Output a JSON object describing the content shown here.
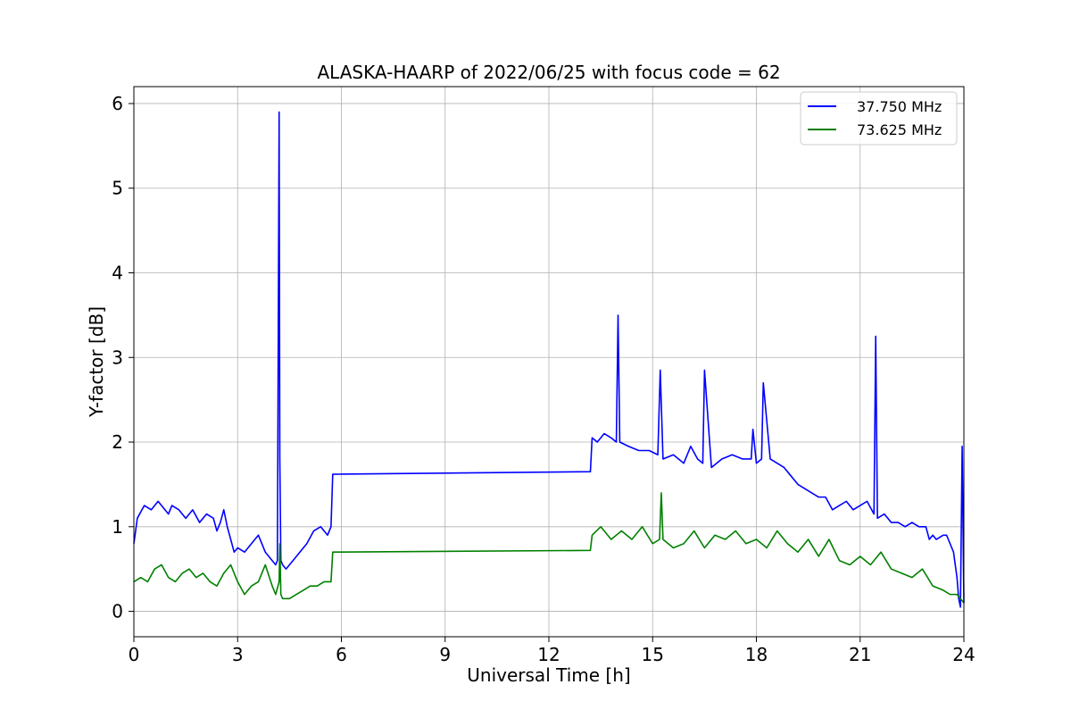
{
  "chart_data": {
    "type": "line",
    "title": "ALASKA-HAARP of 2022/06/25 with focus code = 62",
    "xlabel": "Universal Time [h]",
    "ylabel": "Y-factor [dB]",
    "xlim": [
      0,
      24
    ],
    "ylim": [
      -0.3,
      6.2
    ],
    "xticks": [
      "0",
      "3",
      "6",
      "9",
      "12",
      "15",
      "18",
      "21",
      "24"
    ],
    "yticks": [
      "0",
      "1",
      "2",
      "3",
      "4",
      "5",
      "6"
    ],
    "grid": true,
    "legend_position": "top-right",
    "series": [
      {
        "name": "37.750 MHz",
        "color": "#0000ff",
        "x": [
          0.0,
          0.1,
          0.3,
          0.5,
          0.7,
          0.9,
          1.0,
          1.1,
          1.3,
          1.5,
          1.7,
          1.9,
          2.1,
          2.3,
          2.4,
          2.5,
          2.6,
          2.7,
          2.8,
          2.9,
          3.0,
          3.2,
          3.4,
          3.6,
          3.8,
          4.0,
          4.1,
          4.15,
          4.2,
          4.22,
          4.25,
          4.3,
          4.4,
          4.6,
          4.8,
          5.0,
          5.2,
          5.4,
          5.6,
          5.7,
          5.75,
          13.2,
          13.25,
          13.4,
          13.6,
          13.8,
          13.95,
          14.0,
          14.05,
          14.3,
          14.6,
          14.9,
          15.15,
          15.22,
          15.3,
          15.6,
          15.9,
          16.1,
          16.3,
          16.45,
          16.5,
          16.7,
          17.0,
          17.3,
          17.6,
          17.85,
          17.9,
          18.0,
          18.15,
          18.2,
          18.4,
          18.6,
          18.8,
          19.0,
          19.2,
          19.4,
          19.6,
          19.8,
          20.0,
          20.2,
          20.4,
          20.6,
          20.8,
          21.0,
          21.2,
          21.4,
          21.45,
          21.5,
          21.7,
          21.9,
          22.1,
          22.3,
          22.5,
          22.7,
          22.9,
          23.0,
          23.1,
          23.2,
          23.4,
          23.5,
          23.6,
          23.7,
          23.8,
          23.85,
          23.9,
          23.95,
          24.0
        ],
        "values": [
          0.8,
          1.1,
          1.25,
          1.2,
          1.3,
          1.2,
          1.15,
          1.25,
          1.2,
          1.1,
          1.2,
          1.05,
          1.15,
          1.1,
          0.95,
          1.05,
          1.2,
          1.0,
          0.85,
          0.7,
          0.75,
          0.7,
          0.8,
          0.9,
          0.7,
          0.6,
          0.55,
          0.6,
          5.9,
          1.8,
          0.6,
          0.55,
          0.5,
          0.6,
          0.7,
          0.8,
          0.95,
          1.0,
          0.9,
          1.0,
          1.62,
          1.65,
          2.05,
          2.0,
          2.1,
          2.05,
          2.0,
          3.5,
          2.0,
          1.95,
          1.9,
          1.9,
          1.85,
          2.85,
          1.8,
          1.85,
          1.75,
          1.95,
          1.8,
          1.75,
          2.85,
          1.7,
          1.8,
          1.85,
          1.8,
          1.8,
          2.15,
          1.75,
          1.8,
          2.7,
          1.8,
          1.75,
          1.7,
          1.6,
          1.5,
          1.45,
          1.4,
          1.35,
          1.35,
          1.2,
          1.25,
          1.3,
          1.2,
          1.25,
          1.3,
          1.15,
          3.25,
          1.1,
          1.15,
          1.05,
          1.05,
          1.0,
          1.05,
          1.0,
          1.0,
          0.85,
          0.9,
          0.85,
          0.9,
          0.9,
          0.8,
          0.7,
          0.4,
          0.15,
          0.05,
          1.95,
          0.1
        ]
      },
      {
        "name": "73.625 MHz",
        "color": "#008000",
        "x": [
          0.0,
          0.2,
          0.4,
          0.6,
          0.8,
          1.0,
          1.2,
          1.4,
          1.6,
          1.8,
          2.0,
          2.2,
          2.4,
          2.6,
          2.8,
          3.0,
          3.2,
          3.4,
          3.6,
          3.8,
          4.0,
          4.1,
          4.2,
          4.22,
          4.25,
          4.3,
          4.5,
          4.7,
          4.9,
          5.1,
          5.3,
          5.5,
          5.7,
          5.75,
          13.2,
          13.25,
          13.5,
          13.8,
          14.1,
          14.4,
          14.7,
          15.0,
          15.2,
          15.25,
          15.3,
          15.6,
          15.9,
          16.2,
          16.5,
          16.8,
          17.1,
          17.4,
          17.7,
          18.0,
          18.3,
          18.6,
          18.9,
          19.2,
          19.5,
          19.8,
          20.1,
          20.4,
          20.7,
          21.0,
          21.3,
          21.6,
          21.9,
          22.2,
          22.5,
          22.8,
          23.1,
          23.4,
          23.6,
          23.8,
          24.0
        ],
        "values": [
          0.35,
          0.4,
          0.35,
          0.5,
          0.55,
          0.4,
          0.35,
          0.45,
          0.5,
          0.4,
          0.45,
          0.35,
          0.3,
          0.45,
          0.55,
          0.35,
          0.2,
          0.3,
          0.35,
          0.55,
          0.3,
          0.2,
          0.35,
          0.8,
          0.2,
          0.15,
          0.15,
          0.2,
          0.25,
          0.3,
          0.3,
          0.35,
          0.35,
          0.7,
          0.72,
          0.9,
          1.0,
          0.85,
          0.95,
          0.85,
          1.0,
          0.8,
          0.85,
          1.4,
          0.85,
          0.75,
          0.8,
          0.95,
          0.75,
          0.9,
          0.85,
          0.95,
          0.8,
          0.85,
          0.75,
          0.95,
          0.8,
          0.7,
          0.85,
          0.65,
          0.85,
          0.6,
          0.55,
          0.65,
          0.55,
          0.7,
          0.5,
          0.45,
          0.4,
          0.5,
          0.3,
          0.25,
          0.2,
          0.2,
          0.1
        ]
      }
    ]
  }
}
